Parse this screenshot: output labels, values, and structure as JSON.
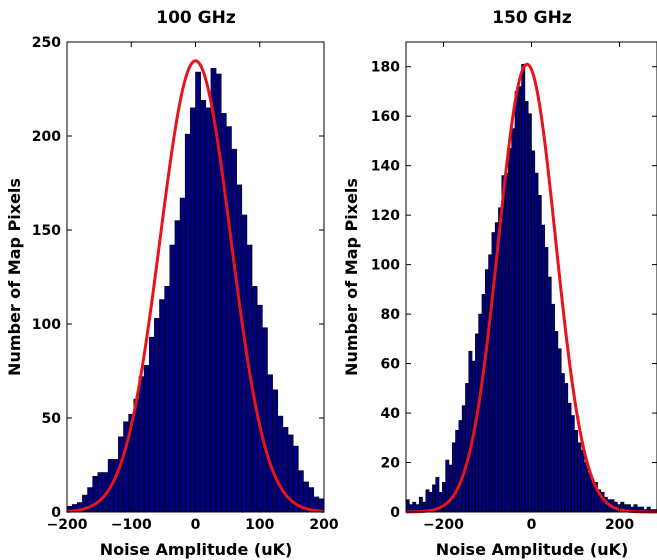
{
  "chart_data": [
    {
      "type": "bar",
      "title": "100 GHz",
      "xlabel": "Noise Amplitude (uK)",
      "ylabel": "Number of Map Pixels",
      "xlim": [
        -200,
        200
      ],
      "ylim": [
        0,
        250
      ],
      "xticks": [
        -200,
        -100,
        0,
        100,
        200
      ],
      "yticks": [
        0,
        50,
        100,
        150,
        200,
        250
      ],
      "xtick_labels": [
        "−200",
        "−100",
        "0",
        "100",
        "200"
      ],
      "ytick_labels": [
        "0",
        "50",
        "100",
        "150",
        "200",
        "250"
      ],
      "bin_start": -200,
      "bin_width": 8,
      "counts": [
        3,
        4,
        5,
        9,
        13,
        19,
        21,
        21,
        28,
        28,
        40,
        48,
        52,
        60,
        72,
        78,
        93,
        103,
        113,
        120,
        142,
        155,
        167,
        201,
        215,
        234,
        219,
        215,
        236,
        233,
        212,
        205,
        193,
        174,
        158,
        142,
        120,
        110,
        98,
        73,
        65,
        51,
        45,
        41,
        35,
        22,
        16,
        13,
        8,
        7
      ],
      "fit": {
        "type": "gaussian",
        "amplitude": 240,
        "mean": 0,
        "sigma": 55
      },
      "bar_color": "#00007a",
      "fit_color": "#e8141c",
      "grid": false,
      "legend": "none"
    },
    {
      "type": "bar",
      "title": "150 GHz",
      "xlabel": "Noise Amplitude (uK)",
      "ylabel": "Number of Map Pixels",
      "xlim": [
        -285,
        285
      ],
      "ylim": [
        0,
        190
      ],
      "xticks": [
        -200,
        0,
        200
      ],
      "yticks": [
        0,
        20,
        40,
        60,
        80,
        100,
        120,
        140,
        160,
        180
      ],
      "xtick_labels": [
        "−200",
        "0",
        "200"
      ],
      "ytick_labels": [
        "0",
        "20",
        "40",
        "60",
        "80",
        "100",
        "120",
        "140",
        "160",
        "180"
      ],
      "bin_start": -285,
      "bin_width": 7.5,
      "counts": [
        5,
        3,
        4,
        3,
        6,
        4,
        9,
        8,
        11,
        14,
        8,
        12,
        21,
        19,
        28,
        33,
        37,
        43,
        52,
        65,
        61,
        72,
        80,
        88,
        98,
        104,
        113,
        117,
        123,
        136,
        137,
        147,
        155,
        170,
        172,
        181,
        166,
        161,
        146,
        137,
        128,
        116,
        107,
        95,
        84,
        73,
        66,
        56,
        52,
        44,
        39,
        33,
        28,
        25,
        20,
        16,
        13,
        12,
        9,
        8,
        6,
        5,
        5,
        4,
        3,
        4,
        3,
        3,
        2,
        3,
        2,
        2,
        1,
        2,
        1,
        1
      ],
      "fit": {
        "type": "gaussian",
        "amplitude": 181,
        "mean": -10,
        "sigma": 65
      },
      "bar_color": "#00007a",
      "fit_color": "#e8141c",
      "grid": false,
      "legend": "none"
    }
  ]
}
